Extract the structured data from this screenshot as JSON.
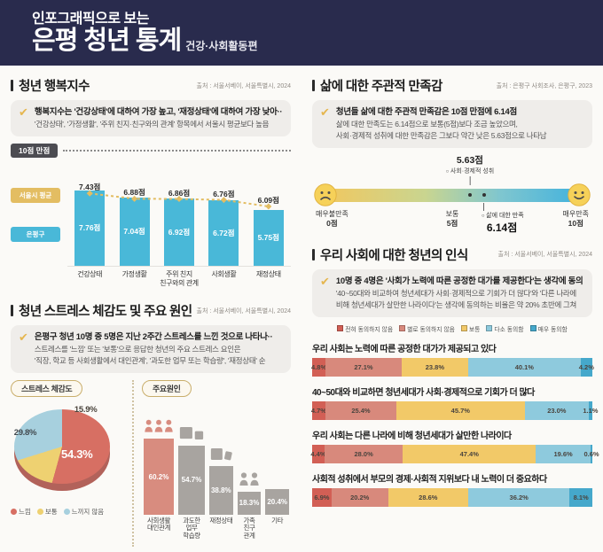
{
  "palette": {
    "navy": "#292b4d",
    "callout_bg": "#efedea",
    "gold_check": "#e5b64f",
    "bar_blue": "#49b8d8",
    "line_gold": "#e3bd62",
    "badge_bg": "#4c4c52"
  },
  "header": {
    "title_top": "인포그래픽으로 보는",
    "title_main": "은평 청년 통계",
    "title_sub": "건강·사회활동편"
  },
  "sections": {
    "happiness": {
      "title": "청년 행복지수",
      "source": "출처 : 서울서베이, 서울특별시, 2024",
      "callout": {
        "lead": "행복지수는 '건강상태'에 대하여 가장 높고, '재정상태'에 대하여 가장 낮아··",
        "body": "'건강상태', '가정생활', '주위 친지·친구와의 관계' 항목에서 서울시 평균보다 높음"
      }
    },
    "stress": {
      "title": "청년 스트레스 체감도 및 주요 원인",
      "source": "출처 : 서울서베이, 서울특별시, 2024",
      "callout": {
        "lead": "은평구 청년 10명 중 5명은 지난 2주간 스트레스를 느낀 것으로 나타나··",
        "body1": "스트레스를 '느낌' 또는 '보통'으로 응답한 청년의 주요 스트레스 요인은",
        "body2": "'직장, 학교 등 사회생활에서 대인관계', '과도한 업무 또는 학습량', '재정상태' 순"
      }
    },
    "satisfaction": {
      "title": "삶에 대한 주관적 만족감",
      "source": "출처 : 은평구 사회조사, 은평구, 2023",
      "callout": {
        "lead": "청년들 삶에 대한 주관적 만족감은 10점 만점에 6.14점",
        "body1": "삶에 대한 만족도는 6.14점으로 보통(5점)보다 조금 높았으며,",
        "body2": "사회·경제적 성취에 대한 만족감은 그보다 약간 낮은 5.63점으로 나타남"
      }
    },
    "perception": {
      "title": "우리 사회에 대한 청년의 인식",
      "source": "출처 : 서울서베이, 서울특별시, 2024",
      "callout": {
        "lead": "10명 중 4명은 '사회가 노력에 따른 공정한 대가를 제공한다'는 생각에 동의",
        "body1": "'40~50대와 비교하여 청년세대가 사회·경제적으로 기회가 더 많다'와 '다른 나라에",
        "body2": "비해 청년세대가 살만한 나라이다'는 생각에 동의하는 비율은 약 20% 초반에 그쳐"
      }
    }
  },
  "chart_data": [
    {
      "id": "happiness",
      "type": "bar",
      "badge": "10점 만점",
      "unit": "점",
      "ylim": [
        0,
        10
      ],
      "categories": [
        "건강상태",
        "가정생활",
        "주위 친지\n친구와의 관계",
        "사회생활",
        "재정상태"
      ],
      "series": [
        {
          "name": "서울시 평균",
          "type": "line",
          "color": "#e3bd62",
          "values": [
            7.43,
            6.88,
            6.86,
            6.76,
            6.09
          ]
        },
        {
          "name": "은평구",
          "type": "bar",
          "color": "#49b8d8",
          "values": [
            7.76,
            7.04,
            6.92,
            6.72,
            5.75
          ]
        }
      ]
    },
    {
      "id": "stress_pie",
      "type": "pie",
      "title": "스트레스 체감도",
      "labels": [
        "느낌",
        "보통",
        "느끼지 않음"
      ],
      "values": [
        54.3,
        15.9,
        29.8
      ],
      "label_order_display": [
        "54.3%",
        "15.9%",
        "29.8%"
      ],
      "colors": [
        "#d76f63",
        "#eed171",
        "#a7d0de"
      ]
    },
    {
      "id": "stress_causes",
      "type": "bar",
      "title": "주요원인",
      "unit": "%",
      "categories": [
        "사회생활\n대인관계",
        "과도한\n업무\n학습량",
        "재정상태",
        "가족\n친구\n관계",
        "기타"
      ],
      "values": [
        60.2,
        54.7,
        38.8,
        18.3,
        20.4
      ],
      "colors": [
        "#d88c7f",
        "#a8a4a0",
        "#a8a4a0",
        "#a8a4a0",
        "#a8a4a0"
      ],
      "icons": [
        "people",
        "docs",
        "sheet",
        "family",
        "none"
      ]
    },
    {
      "id": "satisfaction_scale",
      "type": "scale",
      "ylim": [
        0,
        10
      ],
      "gradient": [
        "#f3c75d",
        "#c9d590",
        "#7fc6cf",
        "#3fb1de"
      ],
      "min_label": "매우불만족",
      "min_value": "0점",
      "mid_label": "보통",
      "mid_value": "5점",
      "max_label": "매우만족",
      "max_value": "10점",
      "markers": [
        {
          "value": 5.63,
          "value_label": "5.63점",
          "label": "사회·경제적 성취",
          "position": "above"
        },
        {
          "value": 6.14,
          "value_label": "6.14점",
          "label": "삶에 대한 만족",
          "position": "below"
        }
      ]
    },
    {
      "id": "perception",
      "type": "stacked-bar",
      "legend": [
        "전혀 동의하지 않음",
        "별로 동의하지 않음",
        "보통",
        "다소 동의함",
        "매우 동의함"
      ],
      "colors": [
        "#d25f55",
        "#d8897c",
        "#f2c968",
        "#8ecadd",
        "#45a8cb"
      ],
      "questions": [
        {
          "label": "우리 사회는 노력에 따른 공정한 대가가 제공되고 있다",
          "values": [
            4.8,
            27.1,
            23.8,
            40.1,
            4.2
          ]
        },
        {
          "label": "40~50대와 비교하면 청년세대가 사회·경제적으로 기회가 더 많다",
          "values": [
            4.7,
            25.4,
            45.7,
            23.0,
            1.1
          ]
        },
        {
          "label": "우리 사회는 다른 나라에 비해 청년세대가 살만한 나라이다",
          "values": [
            4.4,
            28.0,
            47.4,
            19.6,
            0.6
          ]
        },
        {
          "label": "사회적 성취에서 부모의 경제·사회적 지위보다 내 노력이 더 중요하다",
          "values": [
            6.9,
            20.2,
            28.6,
            36.2,
            8.1
          ]
        }
      ]
    }
  ]
}
